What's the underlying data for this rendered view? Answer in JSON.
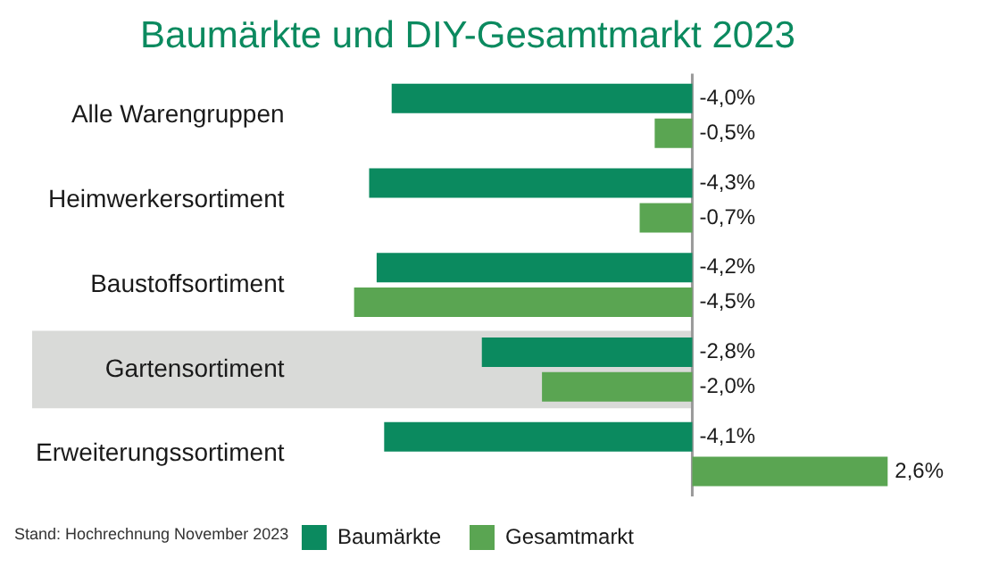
{
  "chart_data": {
    "type": "bar",
    "orientation": "horizontal",
    "title": "Baumärkte und DIY-Gesamtmarkt 2023",
    "categories": [
      "Alle Warengruppen",
      "Heimwerkersortiment",
      "Baustoffsortiment",
      "Gartensortiment",
      "Erweiterungssortiment"
    ],
    "series": [
      {
        "name": "Baumärkte",
        "color": "#0b8a5f",
        "values": [
          -4.0,
          -4.3,
          -4.2,
          -2.8,
          -4.1
        ],
        "value_labels": [
          "-4,0%",
          "-4,3%",
          "-4,2%",
          "-2,8%",
          "-4,1%"
        ]
      },
      {
        "name": "Gesamtmarkt",
        "color": "#5aa552",
        "values": [
          -0.5,
          -0.7,
          -4.5,
          -2.0,
          2.6
        ],
        "value_labels": [
          "-0,5%",
          "-0,7%",
          "-4,5%",
          "-2,0%",
          "2,6%"
        ]
      }
    ],
    "tick_labels": "y",
    "legend": "bottom",
    "ref_lines": [
      {
        "axis": "x",
        "value": 0,
        "color": "#9a9a9a"
      }
    ],
    "bands": [
      {
        "axis": "y",
        "from": "Gartensortiment",
        "to": "Gartensortiment",
        "color": "#d9dad8"
      }
    ],
    "annotations": [
      "Stand: Hochrechnung November 2023"
    ]
  }
}
